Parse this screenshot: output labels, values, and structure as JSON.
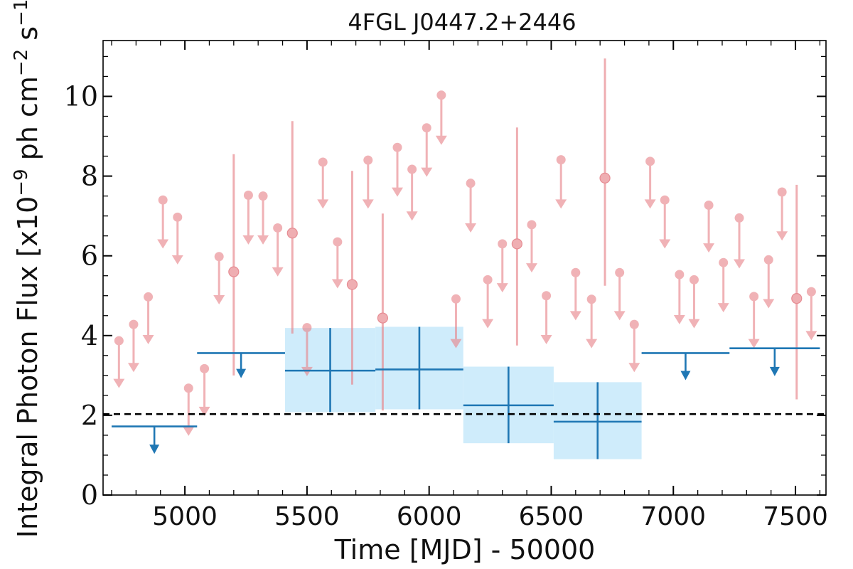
{
  "chart_data": {
    "type": "scatter",
    "title": "4FGL J0447.2+2446",
    "xlabel": "Time [MJD] - 50000",
    "ylabel": "Integral Photon Flux [x10$^{-9}$ ph cm$^{-2}$ s$^{-1}$]",
    "ylabel_parts": {
      "base": "Integral Photon Flux [x10",
      "e1": "−9",
      "mid": " ph cm",
      "e2": "−2",
      "mid2": " s",
      "e3": "−1",
      "end": "]"
    },
    "xlim": [
      4665,
      7625
    ],
    "ylim": [
      0,
      11.4
    ],
    "xticks": [
      5000,
      5500,
      6000,
      6500,
      7000,
      7500
    ],
    "yticks": [
      0,
      2,
      4,
      6,
      8,
      10
    ],
    "baseline": 2.03,
    "colors": {
      "fine": "#e8848a",
      "coarse": "#1f77b4",
      "band": "#cfecfb",
      "baseline": "#000000"
    },
    "series": [
      {
        "upper_limits": [
          [
            4730,
            3.87,
            2.7
          ],
          [
            4790,
            4.28,
            3.1
          ],
          [
            4850,
            4.97,
            3.8
          ],
          [
            4910,
            7.4,
            6.2
          ],
          [
            4970,
            6.97,
            5.8
          ],
          [
            5015,
            2.68,
            1.5
          ],
          [
            5080,
            3.17,
            2.0
          ],
          [
            5140,
            5.98,
            4.8
          ],
          [
            5260,
            7.52,
            6.3
          ],
          [
            5320,
            7.5,
            6.3
          ],
          [
            5380,
            6.7,
            5.5
          ],
          [
            5500,
            4.2,
            3.0
          ],
          [
            5565,
            8.35,
            7.2
          ],
          [
            5625,
            6.35,
            5.2
          ],
          [
            5750,
            8.4,
            7.2
          ],
          [
            5870,
            8.72,
            7.5
          ],
          [
            5930,
            8.17,
            6.9
          ],
          [
            5990,
            9.21,
            8.0
          ],
          [
            6050,
            10.03,
            8.8
          ],
          [
            6110,
            4.92,
            3.7
          ],
          [
            6170,
            7.82,
            6.6
          ],
          [
            6240,
            5.4,
            4.2
          ],
          [
            6300,
            6.3,
            5.1
          ],
          [
            6420,
            6.78,
            5.6
          ],
          [
            6480,
            5.0,
            3.8
          ],
          [
            6540,
            8.41,
            7.2
          ],
          [
            6600,
            5.58,
            4.4
          ],
          [
            6665,
            4.91,
            3.7
          ],
          [
            6780,
            5.58,
            4.4
          ],
          [
            6840,
            4.28,
            3.1
          ],
          [
            6905,
            8.37,
            7.2
          ],
          [
            6965,
            7.4,
            6.2
          ],
          [
            7025,
            5.53,
            4.3
          ],
          [
            7085,
            5.4,
            4.2
          ],
          [
            7145,
            7.27,
            6.1
          ],
          [
            7205,
            5.83,
            4.6
          ],
          [
            7270,
            6.95,
            5.7
          ],
          [
            7330,
            4.98,
            3.7
          ],
          [
            7390,
            5.9,
            4.7
          ],
          [
            7445,
            7.6,
            6.4
          ],
          [
            7565,
            5.1,
            3.9
          ]
        ],
        "detections": [
          [
            5200,
            5.6,
            3.0,
            8.55
          ],
          [
            5440,
            6.57,
            4.05,
            9.38
          ],
          [
            5685,
            5.28,
            2.77,
            8.13
          ],
          [
            5810,
            4.44,
            2.12,
            7.06
          ],
          [
            6360,
            6.3,
            3.75,
            9.22
          ],
          [
            6720,
            7.95,
            5.25,
            10.95
          ],
          [
            7505,
            4.93,
            2.4,
            7.78
          ]
        ]
      },
      {
        "upper_limits": [
          [
            4700,
            5050,
            1.72,
            1.05
          ],
          [
            6870,
            7230,
            3.56,
            2.9
          ],
          [
            7230,
            7600,
            3.68,
            3.0
          ]
        ],
        "detections": [
          [
            5410,
            5780,
            3.12,
            2.08,
            4.19
          ],
          [
            5780,
            6140,
            3.15,
            2.15,
            4.22
          ],
          [
            6140,
            6510,
            2.25,
            1.3,
            3.22
          ],
          [
            6510,
            6870,
            1.84,
            0.9,
            2.83
          ]
        ],
        "step_limit": [
          5050,
          5410,
          3.56,
          2.95
        ]
      }
    ]
  }
}
